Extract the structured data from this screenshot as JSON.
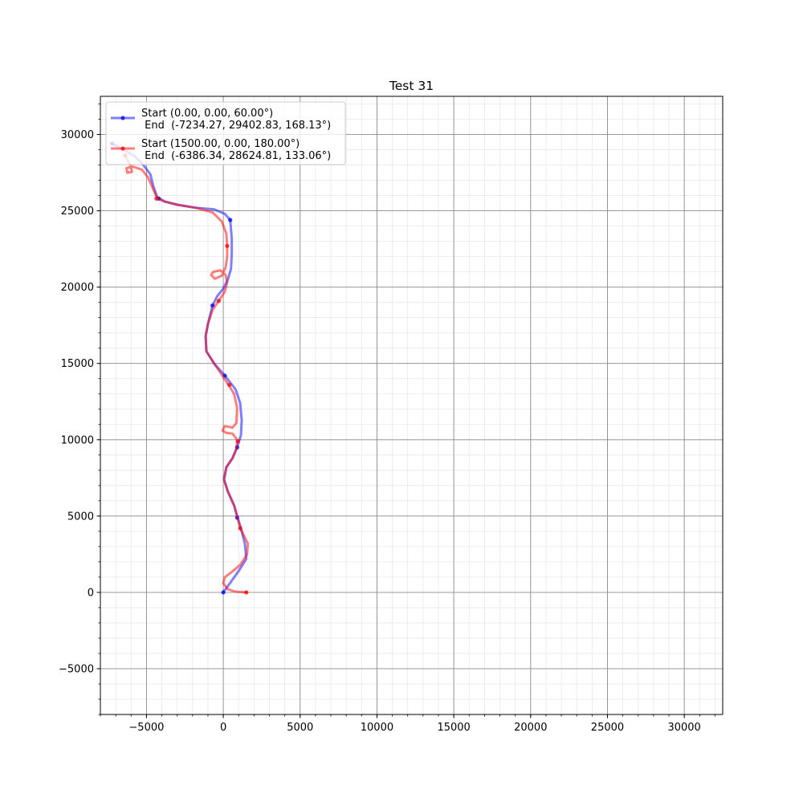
{
  "chart_data": {
    "type": "line",
    "title": "Test 31",
    "xlabel": "",
    "ylabel": "",
    "xlim": [
      -8000,
      32500
    ],
    "ylim": [
      -8000,
      32500
    ],
    "xticks": [
      -5000,
      0,
      5000,
      10000,
      15000,
      20000,
      25000,
      30000
    ],
    "yticks": [
      -5000,
      0,
      5000,
      10000,
      15000,
      20000,
      25000,
      30000
    ],
    "xtick_labels": [
      "−5000",
      "0",
      "5000",
      "10000",
      "15000",
      "20000",
      "25000",
      "30000"
    ],
    "ytick_labels": [
      "−5000",
      "0",
      "5000",
      "10000",
      "15000",
      "20000",
      "25000",
      "30000"
    ],
    "minor_tick_step": 1000,
    "grid": true,
    "legend_position": "upper-left",
    "series": [
      {
        "name": "Start (0.00, 0.00, 60.00°)\n End  (-7234.27, 29402.83, 168.13°)",
        "legend_line1": "Start (0.00, 0.00, 60.00°)",
        "legend_line2": " End  (-7234.27, 29402.83, 168.13°)",
        "color": "#0000ff",
        "path": [
          [
            0,
            0
          ],
          [
            500,
            700
          ],
          [
            1000,
            1400
          ],
          [
            1500,
            2200
          ],
          [
            1400,
            3200
          ],
          [
            1150,
            4200
          ],
          [
            900,
            5000
          ],
          [
            700,
            5700
          ],
          [
            300,
            6600
          ],
          [
            50,
            7400
          ],
          [
            200,
            8200
          ],
          [
            600,
            8800
          ],
          [
            900,
            9500
          ],
          [
            1150,
            10300
          ],
          [
            1200,
            11300
          ],
          [
            1100,
            12400
          ],
          [
            800,
            13300
          ],
          [
            100,
            14200
          ],
          [
            -600,
            15000
          ],
          [
            -1100,
            15800
          ],
          [
            -1150,
            16800
          ],
          [
            -1000,
            17600
          ],
          [
            -700,
            18800
          ],
          [
            -400,
            19400
          ],
          [
            0,
            19900
          ],
          [
            300,
            20500
          ],
          [
            500,
            21200
          ],
          [
            550,
            22200
          ],
          [
            550,
            23200
          ],
          [
            450,
            24400
          ],
          [
            100,
            24800
          ],
          [
            -600,
            25100
          ],
          [
            -1800,
            25200
          ],
          [
            -3000,
            25400
          ],
          [
            -3800,
            25600
          ],
          [
            -4300,
            25900
          ],
          [
            -4550,
            26600
          ],
          [
            -4750,
            27400
          ],
          [
            -5200,
            28000
          ],
          [
            -5800,
            28600
          ],
          [
            -6500,
            29000
          ],
          [
            -7234,
            29403
          ]
        ],
        "markers": [
          [
            0,
            0
          ],
          [
            900,
            4900
          ],
          [
            900,
            9500
          ],
          [
            100,
            14200
          ],
          [
            -700,
            18800
          ],
          [
            450,
            24400
          ],
          [
            -4200,
            25800
          ],
          [
            -7234,
            29403
          ]
        ]
      },
      {
        "name": "Start (1500.00, 0.00, 180.00°)\n End  (-6386.34, 28624.81, 133.06°)",
        "legend_line1": "Start (1500.00, 0.00, 180.00°)",
        "legend_line2": " End  (-6386.34, 28624.81, 133.06°)",
        "color": "#ff0000",
        "path": [
          [
            1500,
            0
          ],
          [
            800,
            50
          ],
          [
            300,
            200
          ],
          [
            0,
            600
          ],
          [
            100,
            1000
          ],
          [
            500,
            1300
          ],
          [
            1100,
            1800
          ],
          [
            1550,
            2500
          ],
          [
            1600,
            3200
          ],
          [
            1350,
            3700
          ],
          [
            1100,
            4200
          ],
          [
            900,
            5000
          ],
          [
            700,
            5700
          ],
          [
            300,
            6600
          ],
          [
            50,
            7400
          ],
          [
            200,
            8200
          ],
          [
            600,
            8800
          ],
          [
            850,
            9400
          ],
          [
            900,
            10000
          ],
          [
            600,
            10400
          ],
          [
            200,
            10450
          ],
          [
            -50,
            10600
          ],
          [
            100,
            10900
          ],
          [
            600,
            10800
          ],
          [
            850,
            11100
          ],
          [
            900,
            12100
          ],
          [
            700,
            13000
          ],
          [
            400,
            13500
          ],
          [
            0,
            14100
          ],
          [
            -600,
            15000
          ],
          [
            -1100,
            15800
          ],
          [
            -1150,
            16800
          ],
          [
            -1000,
            17600
          ],
          [
            -700,
            18500
          ],
          [
            -300,
            19100
          ],
          [
            100,
            19700
          ],
          [
            250,
            20300
          ],
          [
            150,
            20800
          ],
          [
            -200,
            21100
          ],
          [
            -650,
            21000
          ],
          [
            -800,
            20800
          ],
          [
            -550,
            20550
          ],
          [
            -100,
            20750
          ],
          [
            150,
            21300
          ],
          [
            250,
            22000
          ],
          [
            250,
            22700
          ],
          [
            200,
            23500
          ],
          [
            -100,
            24300
          ],
          [
            -700,
            24900
          ],
          [
            -1800,
            25200
          ],
          [
            -3000,
            25400
          ],
          [
            -3800,
            25600
          ],
          [
            -4300,
            25800
          ],
          [
            -4600,
            26500
          ],
          [
            -4900,
            27200
          ],
          [
            -5300,
            27700
          ],
          [
            -5900,
            27900
          ],
          [
            -6300,
            27800
          ],
          [
            -6250,
            27500
          ],
          [
            -5950,
            27550
          ],
          [
            -6000,
            27900
          ],
          [
            -6386,
            28625
          ]
        ],
        "markers": [
          [
            1500,
            0
          ],
          [
            1100,
            4200
          ],
          [
            950,
            9900
          ],
          [
            400,
            13600
          ],
          [
            -300,
            19100
          ],
          [
            250,
            22700
          ],
          [
            -4350,
            25800
          ],
          [
            -6386,
            28625
          ]
        ]
      }
    ]
  }
}
